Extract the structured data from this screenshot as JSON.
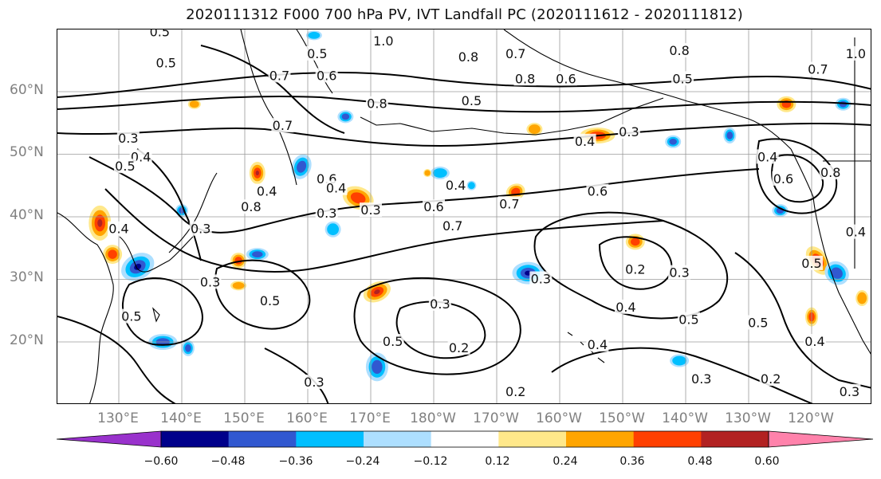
{
  "title": "2020111312 F000 700 hPa PV, IVT Landfall PC (2020111612 - 2020111812)",
  "latitude_labels": [
    "60°N",
    "50°N",
    "40°N",
    "30°N",
    "20°N"
  ],
  "longitude_labels": [
    "130°E",
    "140°E",
    "150°E",
    "160°E",
    "170°E",
    "180°W",
    "170°W",
    "160°W",
    "150°W",
    "140°W",
    "130°W",
    "120°W"
  ],
  "colorbar": {
    "ticks": [
      "−0.60",
      "−0.48",
      "−0.36",
      "−0.24",
      "−0.12",
      "0.12",
      "0.24",
      "0.36",
      "0.48",
      "0.60"
    ],
    "colors": [
      "#9932CC",
      "#00008B",
      "#3158D0",
      "#00BFFF",
      "#ADDFFF",
      "#FFFFFF",
      "#FFE88A",
      "#FFA500",
      "#FF4000",
      "#B22222",
      "#FF82AB"
    ]
  },
  "contour_labels": [
    {
      "text": "0.5",
      "lon": 136.5,
      "lat": 69.5
    },
    {
      "text": "0.5",
      "lon": 137.5,
      "lat": 64.5
    },
    {
      "text": "0.7",
      "lon": 155.5,
      "lat": 62.5
    },
    {
      "text": "0.5",
      "lon": 161.5,
      "lat": 66.0
    },
    {
      "text": "0.6",
      "lon": 163.0,
      "lat": 62.5
    },
    {
      "text": "1.0",
      "lon": 172.0,
      "lat": 68.0
    },
    {
      "text": "0.8",
      "lon": 171.0,
      "lat": 58.0
    },
    {
      "text": "0.8",
      "lon": 185.5,
      "lat": 65.5
    },
    {
      "text": "0.7",
      "lon": 193.0,
      "lat": 66.0
    },
    {
      "text": "0.8",
      "lon": 194.5,
      "lat": 62.0
    },
    {
      "text": "0.6",
      "lon": 201.0,
      "lat": 62.0
    },
    {
      "text": "0.5",
      "lon": 186.0,
      "lat": 58.5
    },
    {
      "text": "0.8",
      "lon": 219.0,
      "lat": 66.5
    },
    {
      "text": "0.5",
      "lon": 219.5,
      "lat": 62.0
    },
    {
      "text": "0.7",
      "lon": 241.0,
      "lat": 63.5
    },
    {
      "text": "1.0",
      "lon": 247.0,
      "lat": 66.0
    },
    {
      "text": "0.3",
      "lon": 131.5,
      "lat": 52.5
    },
    {
      "text": "0.4",
      "lon": 133.5,
      "lat": 49.5
    },
    {
      "text": "0.5",
      "lon": 131.0,
      "lat": 48.0
    },
    {
      "text": "0.7",
      "lon": 156.0,
      "lat": 54.5
    },
    {
      "text": "0.4",
      "lon": 153.5,
      "lat": 44.0
    },
    {
      "text": "0.8",
      "lon": 151.0,
      "lat": 41.5
    },
    {
      "text": "0.4",
      "lon": 130.0,
      "lat": 38.0
    },
    {
      "text": "0.3",
      "lon": 143.0,
      "lat": 38.0
    },
    {
      "text": "0.6",
      "lon": 163.0,
      "lat": 46.0
    },
    {
      "text": "0.4",
      "lon": 164.5,
      "lat": 44.5
    },
    {
      "text": "0.3",
      "lon": 163.0,
      "lat": 40.5
    },
    {
      "text": "0.3",
      "lon": 170.0,
      "lat": 41.0
    },
    {
      "text": "0.6",
      "lon": 180.0,
      "lat": 41.5
    },
    {
      "text": "0.4",
      "lon": 183.5,
      "lat": 45.0
    },
    {
      "text": "0.7",
      "lon": 183.0,
      "lat": 38.5
    },
    {
      "text": "0.7",
      "lon": 192.0,
      "lat": 42.0
    },
    {
      "text": "0.6",
      "lon": 206.0,
      "lat": 44.0
    },
    {
      "text": "0.4",
      "lon": 204.0,
      "lat": 52.0
    },
    {
      "text": "0.3",
      "lon": 211.0,
      "lat": 53.5
    },
    {
      "text": "0.2",
      "lon": 212.0,
      "lat": 31.5
    },
    {
      "text": "0.3",
      "lon": 219.0,
      "lat": 31.0
    },
    {
      "text": "0.3",
      "lon": 197.0,
      "lat": 30.0
    },
    {
      "text": "0.4",
      "lon": 210.5,
      "lat": 25.5
    },
    {
      "text": "0.4",
      "lon": 206.0,
      "lat": 19.5
    },
    {
      "text": "0.5",
      "lon": 220.5,
      "lat": 23.5
    },
    {
      "text": "0.5",
      "lon": 231.5,
      "lat": 23.0
    },
    {
      "text": "0.3",
      "lon": 222.5,
      "lat": 14.0
    },
    {
      "text": "0.2",
      "lon": 233.5,
      "lat": 14.0
    },
    {
      "text": "0.3",
      "lon": 181.0,
      "lat": 26.0
    },
    {
      "text": "0.5",
      "lon": 173.5,
      "lat": 20.0
    },
    {
      "text": "0.2",
      "lon": 184.0,
      "lat": 19.0
    },
    {
      "text": "0.2",
      "lon": 193.0,
      "lat": 12.0
    },
    {
      "text": "0.3",
      "lon": 161.0,
      "lat": 13.5
    },
    {
      "text": "0.5",
      "lon": 154.0,
      "lat": 26.5
    },
    {
      "text": "0.3",
      "lon": 144.5,
      "lat": 29.5
    },
    {
      "text": "0.5",
      "lon": 132.0,
      "lat": 24.0
    },
    {
      "text": "0.4",
      "lon": 233.0,
      "lat": 49.5
    },
    {
      "text": "0.6",
      "lon": 235.5,
      "lat": 46.0
    },
    {
      "text": "0.8",
      "lon": 243.0,
      "lat": 47.0
    },
    {
      "text": "0.4",
      "lon": 247.0,
      "lat": 37.5
    },
    {
      "text": "0.4",
      "lon": 240.5,
      "lat": 20.0
    },
    {
      "text": "0.3",
      "lon": 246.0,
      "lat": 12.0
    },
    {
      "text": "0.5",
      "lon": 240.0,
      "lat": 32.5
    }
  ]
}
